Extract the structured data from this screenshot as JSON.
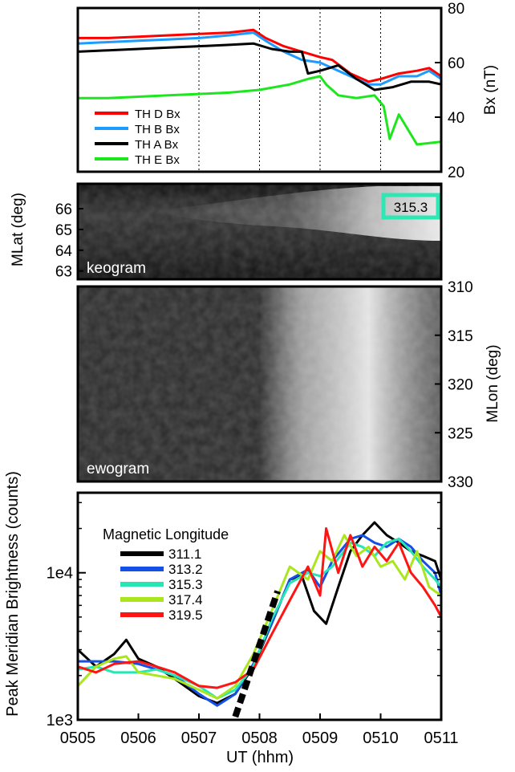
{
  "chart_data": [
    {
      "type": "line",
      "panel": "magnetometer",
      "ylabel": "Bx (nT)",
      "ylim": [
        20,
        80
      ],
      "yticks": [
        20,
        40,
        60,
        80
      ],
      "y_axis_side": "right",
      "vertical_dotted_lines_x": [
        507.0,
        508.0,
        509.0,
        510.0
      ],
      "legend_position": "bottom-left",
      "series": [
        {
          "name": "TH D Bx",
          "color": "#ff0000",
          "x": [
            505.0,
            505.5,
            506.0,
            506.5,
            507.0,
            507.5,
            507.9,
            508.1,
            508.4,
            508.7,
            509.0,
            509.2,
            509.5,
            509.8,
            510.0,
            510.3,
            510.6,
            510.8,
            511.0
          ],
          "y": [
            69,
            69,
            69.5,
            70,
            70.5,
            71,
            72,
            69,
            66,
            64,
            62,
            61,
            56,
            53,
            54,
            56,
            57,
            58,
            55
          ]
        },
        {
          "name": "TH B Bx",
          "color": "#1e9bff",
          "x": [
            505.0,
            505.5,
            506.0,
            506.5,
            507.0,
            507.5,
            507.9,
            508.1,
            508.4,
            508.7,
            509.0,
            509.2,
            509.5,
            509.8,
            510.0,
            510.3,
            510.6,
            510.8,
            511.0
          ],
          "y": [
            67,
            67.5,
            68,
            68.5,
            69,
            70,
            71,
            68,
            64,
            61,
            60,
            58,
            55,
            52,
            52,
            55,
            55,
            57,
            54
          ]
        },
        {
          "name": "TH A Bx",
          "color": "#000000",
          "x": [
            505.0,
            505.5,
            506.0,
            506.5,
            507.0,
            507.5,
            507.9,
            508.2,
            508.5,
            508.7,
            508.8,
            509.0,
            509.3,
            509.6,
            509.9,
            510.2,
            510.5,
            510.8,
            511.0
          ],
          "y": [
            64,
            64.5,
            65,
            65.5,
            66,
            66.5,
            67,
            65,
            64,
            64,
            56,
            57,
            59,
            54,
            50,
            51,
            53,
            53,
            52
          ]
        },
        {
          "name": "TH E Bx",
          "color": "#1ee61e",
          "x": [
            505.0,
            505.5,
            506.0,
            506.5,
            507.0,
            507.5,
            508.0,
            508.5,
            508.8,
            509.0,
            509.1,
            509.3,
            509.6,
            509.9,
            510.05,
            510.15,
            510.3,
            510.6,
            511.0
          ],
          "y": [
            47,
            47,
            47.5,
            48,
            48.5,
            49,
            50,
            52,
            54,
            55,
            52,
            48,
            47,
            48,
            44,
            32,
            41,
            30,
            31
          ]
        }
      ]
    },
    {
      "type": "heatmap",
      "panel": "keogram",
      "label": "keogram",
      "ylabel": "MLat (deg)",
      "ylim": [
        62.6,
        67.2
      ],
      "yticks": [
        63,
        64,
        65,
        66
      ],
      "y_axis_side": "left",
      "annotation": "315.3",
      "annotation_color": "#2de8b4"
    },
    {
      "type": "heatmap",
      "panel": "ewogram",
      "label": "ewogram",
      "ylabel": "MLon (deg)",
      "ylim": [
        310,
        330
      ],
      "yticks": [
        310,
        315,
        320,
        325,
        330
      ],
      "y_axis_side": "right"
    },
    {
      "type": "line",
      "panel": "brightness",
      "xlabel": "UT (hhm)",
      "ylabel": "Peak Meridian Brightness (counts)",
      "xlim": [
        505,
        511
      ],
      "xtick_labels": [
        "0505",
        "0506",
        "0507",
        "0508",
        "0509",
        "0510",
        "0511"
      ],
      "ylim_log": [
        1000,
        35000
      ],
      "ytick_labels": [
        "1e3",
        "1e4"
      ],
      "legend_title": "Magnetic Longitude",
      "legend_position": "top-left",
      "fit_line": {
        "style": "dashed",
        "color": "#000000",
        "x": [
          507.6,
          508.3
        ],
        "y": [
          1050,
          7500
        ]
      },
      "series": [
        {
          "name": "311.1",
          "color": "#000000",
          "x": [
            505.0,
            505.3,
            505.6,
            505.8,
            506.0,
            506.3,
            506.6,
            507.0,
            507.3,
            507.6,
            507.9,
            508.2,
            508.5,
            508.7,
            508.9,
            509.1,
            509.3,
            509.5,
            509.7,
            509.9,
            510.1,
            510.3,
            510.5,
            510.7,
            510.9,
            511.0
          ],
          "y": [
            3000,
            2300,
            2800,
            3500,
            2600,
            2300,
            1900,
            1450,
            1300,
            1500,
            2300,
            4500,
            9000,
            9500,
            5500,
            4500,
            8000,
            14000,
            18000,
            22000,
            18000,
            16000,
            14000,
            13000,
            12000,
            9000
          ]
        },
        {
          "name": "313.2",
          "color": "#1450e6",
          "x": [
            505.0,
            505.3,
            505.6,
            506.0,
            506.3,
            506.6,
            507.0,
            507.3,
            507.6,
            507.9,
            508.2,
            508.5,
            508.8,
            509.0,
            509.2,
            509.5,
            509.7,
            509.9,
            510.1,
            510.3,
            510.5,
            510.7,
            510.9,
            511.0
          ],
          "y": [
            2500,
            2500,
            2500,
            2400,
            2200,
            2000,
            1500,
            1250,
            1500,
            2400,
            4500,
            9000,
            10500,
            8000,
            12000,
            17000,
            18000,
            16000,
            15000,
            17000,
            15000,
            12000,
            10000,
            7000
          ]
        },
        {
          "name": "315.3",
          "color": "#28e6b4",
          "x": [
            505.0,
            505.3,
            505.6,
            506.0,
            506.3,
            506.6,
            507.0,
            507.3,
            507.6,
            507.9,
            508.2,
            508.5,
            508.8,
            509.0,
            509.2,
            509.5,
            509.7,
            509.9,
            510.1,
            510.3,
            510.5,
            510.7,
            510.9,
            511.0
          ],
          "y": [
            2200,
            2300,
            2100,
            2100,
            2200,
            2000,
            1700,
            1400,
            1600,
            2300,
            4800,
            8500,
            10000,
            9500,
            11000,
            16000,
            15000,
            13000,
            16000,
            17000,
            14000,
            11000,
            9000,
            8000
          ]
        },
        {
          "name": "317.4",
          "color": "#aae61e",
          "x": [
            505.0,
            505.3,
            505.6,
            505.8,
            506.0,
            506.3,
            506.6,
            507.0,
            507.3,
            507.6,
            507.9,
            508.2,
            508.5,
            508.8,
            509.0,
            509.2,
            509.4,
            509.6,
            509.8,
            510.0,
            510.2,
            510.4,
            510.6,
            510.8,
            511.0
          ],
          "y": [
            1700,
            2300,
            2600,
            2700,
            2100,
            2000,
            1900,
            1600,
            1400,
            1700,
            2800,
            5500,
            11000,
            9000,
            14000,
            12000,
            18000,
            13000,
            15000,
            11000,
            12000,
            9000,
            14000,
            8000,
            7000
          ]
        },
        {
          "name": "319.5",
          "color": "#ff1414",
          "x": [
            505.0,
            505.3,
            505.6,
            506.0,
            506.3,
            506.6,
            507.0,
            507.3,
            507.6,
            507.9,
            508.2,
            508.5,
            508.8,
            509.0,
            509.1,
            509.3,
            509.5,
            509.7,
            509.9,
            510.1,
            510.3,
            510.5,
            510.7,
            510.9,
            511.0
          ],
          "y": [
            2300,
            2100,
            2400,
            2500,
            2300,
            2100,
            1700,
            1650,
            1800,
            2200,
            3800,
            6500,
            11000,
            7000,
            20000,
            10000,
            18000,
            11000,
            15000,
            12000,
            16000,
            10000,
            8000,
            6000,
            5000
          ]
        }
      ]
    }
  ]
}
